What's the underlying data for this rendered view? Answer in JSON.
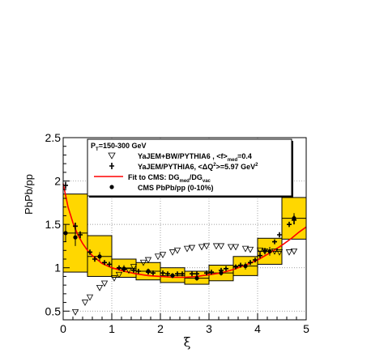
{
  "chart_data": {
    "type": "scatter",
    "xlabel": "ξ",
    "ylabel": "PbPb/pp",
    "xlim": [
      0,
      5
    ],
    "ylim": [
      0.4,
      2.5
    ],
    "grid": true,
    "x_ticks": [
      "0",
      "1",
      "2",
      "3",
      "4",
      "5"
    ],
    "y_ticks": [
      "0.5",
      "1",
      "1.5",
      "2",
      "2.5"
    ],
    "legend_position": "top",
    "legend": {
      "header": {
        "main": "P",
        "sub": "T",
        "rest": "=150-300 GeV"
      },
      "entries": [
        {
          "symbol": "open-triangle-down",
          "main": "YaJEM+BW/PYTHIA6 , <f>",
          "sub": "med",
          "rest": "=0.4"
        },
        {
          "symbol": "cross",
          "main": "YaJEM/PYTHIA6, <ΔQ",
          "sup": "2",
          "rest": ">=5.97 GeV",
          "sup2": "2"
        },
        {
          "symbol": "red-line",
          "main": "Fit to CMS: DG",
          "sub": "med",
          "mid": "/DG",
          "sub2": "vac"
        },
        {
          "symbol": "filled-circle",
          "main": "CMS PbPb/pp (0-10%)"
        }
      ]
    },
    "series": [
      {
        "name": "CMS PbPb/pp (0-10%)",
        "marker": "filled-circle",
        "x": [
          0.05,
          0.25,
          0.75,
          1.25,
          1.75,
          2.25,
          2.75,
          3.25,
          3.75,
          4.25,
          4.75
        ],
        "y": [
          1.4,
          1.35,
          1.13,
          0.99,
          0.96,
          0.91,
          0.88,
          0.94,
          1.02,
          1.19,
          1.57
        ],
        "err": [
          0.1,
          0.1,
          0.05,
          0.04,
          0.03,
          0.03,
          0.03,
          0.03,
          0.04,
          0.05,
          0.06
        ],
        "box_low": [
          0.95,
          0.95,
          0.9,
          0.89,
          0.86,
          0.83,
          0.81,
          0.85,
          0.91,
          1.04,
          1.33
        ],
        "box_high": [
          1.85,
          1.85,
          1.37,
          1.1,
          1.06,
          1.0,
          0.96,
          1.03,
          1.13,
          1.34,
          1.81
        ]
      },
      {
        "name": "YaJEM/PYTHIA6, <ΔQ2>=5.97 GeV2",
        "marker": "cross",
        "x": [
          0.05,
          0.25,
          0.35,
          0.55,
          0.65,
          0.85,
          0.95,
          1.15,
          1.25,
          1.45,
          1.55,
          1.75,
          1.85,
          2.05,
          2.15,
          2.35,
          2.45,
          2.65,
          2.75,
          2.95,
          3.05,
          3.25,
          3.35,
          3.55,
          3.65,
          3.85,
          3.95,
          4.05,
          4.15,
          4.35,
          4.45,
          4.65,
          4.75
        ],
        "y": [
          1.95,
          1.48,
          1.38,
          1.18,
          1.1,
          1.06,
          1.04,
          1.0,
          0.98,
          0.97,
          0.96,
          0.95,
          0.94,
          0.94,
          0.93,
          0.93,
          0.93,
          0.93,
          0.93,
          0.94,
          0.95,
          0.97,
          0.99,
          1.01,
          1.03,
          1.06,
          1.09,
          1.14,
          1.2,
          1.3,
          1.38,
          1.5,
          1.55
        ],
        "err": [
          0.04,
          0.04,
          0.04,
          0.03,
          0.03,
          0.02,
          0.02,
          0.02,
          0.02,
          0.02,
          0.02,
          0.02,
          0.02,
          0.02,
          0.02,
          0.02,
          0.02,
          0.02,
          0.02,
          0.02,
          0.02,
          0.02,
          0.02,
          0.02,
          0.02,
          0.02,
          0.02,
          0.02,
          0.02,
          0.02,
          0.03,
          0.03,
          0.05
        ]
      },
      {
        "name": "YaJEM+BW/PYTHIA6 , <f>med=0.4",
        "marker": "open-triangle-down",
        "x": [
          0.25,
          0.45,
          0.55,
          0.75,
          0.85,
          1.05,
          1.15,
          1.35,
          1.45,
          1.65,
          1.75,
          1.95,
          2.05,
          2.25,
          2.35,
          2.55,
          2.65,
          2.85,
          2.95,
          3.15,
          3.25,
          3.45,
          3.55,
          3.75,
          3.85,
          4.05,
          4.15,
          4.35,
          4.45,
          4.65,
          4.75
        ],
        "y": [
          0.49,
          0.6,
          0.66,
          0.77,
          0.82,
          0.88,
          0.92,
          0.97,
          1.01,
          1.06,
          1.09,
          1.13,
          1.15,
          1.18,
          1.2,
          1.22,
          1.23,
          1.24,
          1.25,
          1.25,
          1.25,
          1.24,
          1.24,
          1.22,
          1.21,
          1.2,
          1.19,
          1.19,
          1.18,
          1.18,
          1.19
        ]
      },
      {
        "name": "Fit to CMS: DGmed/DGvac",
        "type": "line",
        "color": "#ff0000",
        "x": [
          0.0,
          0.1,
          0.2,
          0.3,
          0.4,
          0.5,
          0.6,
          0.8,
          1.0,
          1.25,
          1.5,
          1.75,
          2.0,
          2.25,
          2.5,
          2.75,
          3.0,
          3.25,
          3.5,
          3.75,
          4.0,
          4.25,
          4.5,
          4.7,
          4.85,
          5.0
        ],
        "y": [
          1.97,
          1.7,
          1.52,
          1.38,
          1.28,
          1.2,
          1.14,
          1.05,
          1.0,
          0.96,
          0.93,
          0.91,
          0.9,
          0.89,
          0.89,
          0.9,
          0.92,
          0.94,
          0.98,
          1.03,
          1.09,
          1.17,
          1.26,
          1.34,
          1.41,
          1.47
        ]
      }
    ],
    "colors": {
      "box_fill": "#ffd700",
      "box_stroke": "#000000",
      "fit_line": "#ff0000",
      "grid": "#808080"
    }
  }
}
